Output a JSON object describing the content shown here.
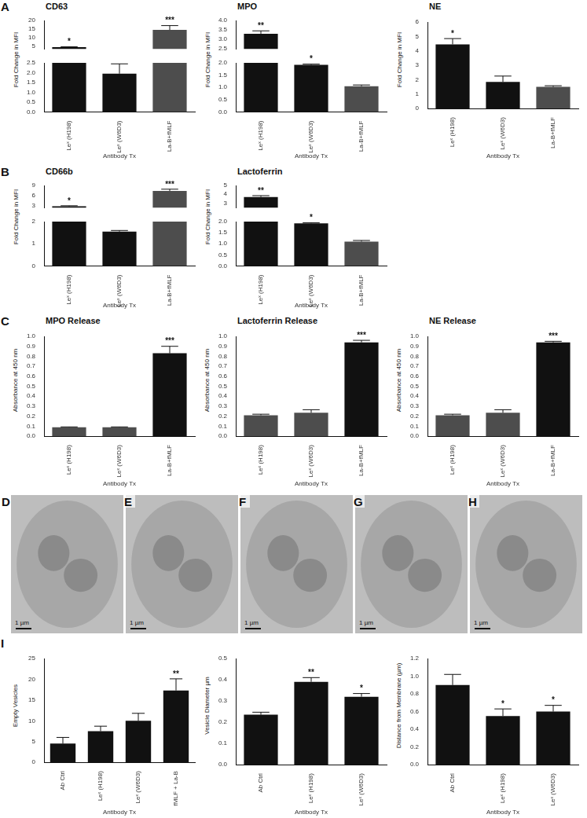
{
  "chart_data": [
    {
      "type": "bar",
      "title": "CD63",
      "y_label": "Fold Change in MFI",
      "x_label": "Antibody Tx",
      "categories": [
        "Leˣ (H198)",
        "Leˣ (W6D3)",
        "La-B+fMLF"
      ],
      "values": [
        4.5,
        1.95,
        14.5
      ],
      "errors": [
        0.2,
        0.5,
        2.5
      ],
      "annotations": [
        "*",
        null,
        "***"
      ],
      "colors": [
        "#111111",
        "#111111",
        "#4d4d4d"
      ],
      "ylim": [
        0,
        20
      ],
      "ybreak": [
        2.5,
        3.5
      ],
      "yticks": [
        {
          "value": 0,
          "label": "0.0"
        },
        0.5,
        {
          "value": 1,
          "label": "1.0"
        },
        1.5,
        {
          "value": 2,
          "label": "2.0"
        },
        2.5,
        5,
        10,
        15,
        20
      ],
      "grid": false
    },
    {
      "type": "bar",
      "title": "MPO",
      "y_label": "Fold Change in MFI",
      "x_label": "Antibody Tx",
      "categories": [
        "Leˣ (H198)",
        "Leˣ (W6D3)",
        "La-B+fMLF"
      ],
      "values": [
        3.3,
        1.92,
        1.05
      ],
      "errors": [
        0.15,
        0.03,
        0.05
      ],
      "annotations": [
        "**",
        "*",
        null
      ],
      "colors": [
        "#111111",
        "#111111",
        "#4d4d4d"
      ],
      "ylim": [
        0,
        4
      ],
      "ybreak": [
        2,
        2.5
      ],
      "yticks": [
        {
          "value": 0,
          "label": "0.0"
        },
        0.5,
        {
          "value": 1,
          "label": "1.0"
        },
        1.5,
        {
          "value": 2,
          "label": "2.0"
        },
        2.5,
        {
          "value": 3,
          "label": "3.0"
        },
        3.5,
        {
          "value": 4,
          "label": "4.0"
        }
      ],
      "grid": false
    },
    {
      "type": "bar",
      "title": "NE",
      "y_label": "Fold Change in MFI",
      "x_label": "Antibody Tx",
      "categories": [
        "Leˣ (H198)",
        "Leˣ (W6D3)",
        "La-B+fMLF"
      ],
      "values": [
        4.45,
        1.85,
        1.5
      ],
      "errors": [
        0.4,
        0.4,
        0.08
      ],
      "annotations": [
        "*",
        null,
        null
      ],
      "colors": [
        "#111111",
        "#111111",
        "#4d4d4d"
      ],
      "ylim": [
        0,
        6
      ],
      "yticks": [
        0,
        1,
        2,
        3,
        4,
        5,
        6
      ],
      "grid": false
    },
    {
      "type": "bar",
      "title": "CD66b",
      "y_label": "Fold Change in MFI",
      "x_label": "Antibody Tx",
      "categories": [
        "Leˣ (H198)",
        "Leˣ (W6D3)",
        "La-B+fMLF"
      ],
      "values": [
        2.9,
        1.55,
        7.4
      ],
      "errors": [
        0.15,
        0.05,
        0.5
      ],
      "annotations": [
        "*",
        null,
        "***"
      ],
      "colors": [
        "#111111",
        "#111111",
        "#4d4d4d"
      ],
      "ylim": [
        0,
        9
      ],
      "ybreak": [
        2,
        2.5
      ],
      "yticks": [
        0,
        1,
        2,
        3,
        6,
        9
      ],
      "grid": false
    },
    {
      "type": "bar",
      "title": "Lactoferrin",
      "y_label": "Fold Change in MFI",
      "x_label": "Antibody Tx",
      "categories": [
        "Leˣ (H198)",
        "Leˣ (W6D3)",
        "La-B+fMLF"
      ],
      "values": [
        3.7,
        1.92,
        1.1
      ],
      "errors": [
        0.15,
        0.03,
        0.05
      ],
      "annotations": [
        "**",
        "*",
        null
      ],
      "colors": [
        "#111111",
        "#111111",
        "#4d4d4d"
      ],
      "ylim": [
        0,
        5
      ],
      "ybreak": [
        2,
        2.5
      ],
      "yticks": [
        {
          "value": 0,
          "label": "0.0"
        },
        0.5,
        {
          "value": 1,
          "label": "1.0"
        },
        1.5,
        {
          "value": 2,
          "label": "2.0"
        },
        3,
        4,
        5
      ],
      "grid": false
    },
    {
      "type": "bar",
      "title": "MPO Release",
      "y_label": "Absorbance at 450 nm",
      "x_label": "Antibody Tx",
      "categories": [
        "Leˣ (H198)",
        "Leˣ (W6D3)",
        "La-B+fMLF"
      ],
      "values": [
        0.09,
        0.09,
        0.83
      ],
      "errors": [
        0.003,
        0.003,
        0.07
      ],
      "annotations": [
        null,
        null,
        "***"
      ],
      "colors": [
        "#4d4d4d",
        "#4d4d4d",
        "#111111"
      ],
      "ylim": [
        0,
        1
      ],
      "yticks": [
        {
          "value": 0,
          "label": "0.0"
        },
        0.1,
        0.2,
        0.3,
        0.4,
        0.5,
        0.6,
        0.7,
        0.8,
        0.9,
        {
          "value": 1,
          "label": "1.0"
        }
      ],
      "grid": false
    },
    {
      "type": "bar",
      "title": "Lactoferrin Release",
      "y_label": "Absorbance at 450 nm",
      "x_label": "Antibody Tx",
      "categories": [
        "Leˣ (H198)",
        "Leˣ (W6D3)",
        "La-B+fMLF"
      ],
      "values": [
        0.21,
        0.235,
        0.94
      ],
      "errors": [
        0.01,
        0.03,
        0.02
      ],
      "annotations": [
        null,
        null,
        "***"
      ],
      "colors": [
        "#4d4d4d",
        "#4d4d4d",
        "#111111"
      ],
      "ylim": [
        0,
        1
      ],
      "yticks": [
        {
          "value": 0,
          "label": "0.0"
        },
        0.1,
        0.2,
        0.3,
        0.4,
        0.5,
        0.6,
        0.7,
        0.8,
        0.9,
        {
          "value": 1,
          "label": "1.0"
        }
      ],
      "grid": false
    },
    {
      "type": "bar",
      "title": "NE Release",
      "y_label": "Absorbance at 450 nm",
      "x_label": "Antibody Tx",
      "categories": [
        "Leˣ (H198)",
        "Leˣ (W6D3)",
        "La-B+fMLF"
      ],
      "values": [
        0.21,
        0.235,
        0.94
      ],
      "errors": [
        0.01,
        0.03,
        0.01
      ],
      "annotations": [
        null,
        null,
        "***"
      ],
      "colors": [
        "#4d4d4d",
        "#4d4d4d",
        "#111111"
      ],
      "ylim": [
        0,
        1
      ],
      "yticks": [
        {
          "value": 0,
          "label": "0.0"
        },
        0.1,
        0.2,
        0.3,
        0.4,
        0.5,
        0.6,
        0.7,
        0.8,
        0.9,
        {
          "value": 1,
          "label": "1.0"
        }
      ],
      "grid": false
    },
    {
      "type": "bar",
      "y_label": "Empty Vesicles",
      "x_label": "Antibody Tx",
      "categories": [
        "Ab Ctrl",
        "Leˣ (H198)",
        "Leˣ (W6D3)",
        "fMLF + La-B"
      ],
      "values": [
        4.5,
        7.5,
        10,
        17.3
      ],
      "errors": [
        1.5,
        1.2,
        1.8,
        2.8
      ],
      "annotations": [
        null,
        null,
        null,
        "**"
      ],
      "colors": [
        "#111111",
        "#111111",
        "#111111",
        "#111111"
      ],
      "ylim": [
        0,
        25
      ],
      "yticks": [
        0,
        5,
        10,
        15,
        20,
        25
      ],
      "grid": false
    },
    {
      "type": "bar",
      "y_label": "Vesicle Diameter µm",
      "x_label": "Antibody Tx",
      "categories": [
        "Ab Ctrl",
        "Leˣ (H198)",
        "Leˣ (W6D3)"
      ],
      "values": [
        0.235,
        0.39,
        0.32
      ],
      "errors": [
        0.012,
        0.02,
        0.015
      ],
      "annotations": [
        null,
        "**",
        "*"
      ],
      "colors": [
        "#111111",
        "#111111",
        "#111111"
      ],
      "ylim": [
        0,
        0.5
      ],
      "yticks": [
        {
          "value": 0,
          "label": "0.0"
        },
        0.1,
        0.2,
        0.3,
        0.4,
        0.5
      ],
      "grid": false
    },
    {
      "type": "bar",
      "y_label": "Distance from Membrane (µm)",
      "x_label": "Antibody Tx",
      "categories": [
        "Ab Ctrl",
        "Leˣ (H198)",
        "Leˣ (W6D3)"
      ],
      "values": [
        0.9,
        0.55,
        0.6
      ],
      "errors": [
        0.12,
        0.08,
        0.07
      ],
      "annotations": [
        null,
        "*",
        "*"
      ],
      "colors": [
        "#111111",
        "#111111",
        "#111111"
      ],
      "ylim": [
        0,
        1.2
      ],
      "yticks": [
        {
          "value": 0,
          "label": "0.0"
        },
        0.2,
        0.4,
        0.6,
        0.8,
        {
          "value": 1,
          "label": "1.0"
        },
        1.2
      ],
      "grid": false
    }
  ],
  "panel_labels": [
    "A",
    "B",
    "C",
    "I"
  ],
  "micrographs": [
    {
      "label": "D",
      "scale_bar": "1 µm"
    },
    {
      "label": "E",
      "scale_bar": "1 µm"
    },
    {
      "label": "F",
      "scale_bar": "1 µm"
    },
    {
      "label": "G",
      "scale_bar": "1 µm"
    },
    {
      "label": "H",
      "scale_bar": "1 µm"
    }
  ]
}
